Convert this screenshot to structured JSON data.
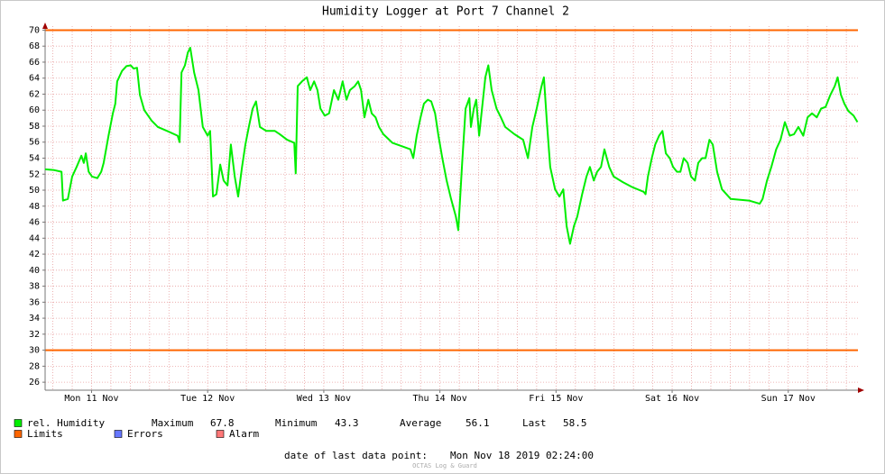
{
  "chart_data": {
    "type": "line",
    "title": "Humidity Logger at Port 7 Channel 2",
    "xlim": [
      2.4,
      170.4
    ],
    "xticks": [
      {
        "value": 12,
        "label": "Mon 11 Nov"
      },
      {
        "value": 36,
        "label": "Tue 12 Nov"
      },
      {
        "value": 60,
        "label": "Wed 13 Nov"
      },
      {
        "value": 84,
        "label": "Thu 14 Nov"
      },
      {
        "value": 108,
        "label": "Fri 15 Nov"
      },
      {
        "value": 132,
        "label": "Sat 16 Nov"
      },
      {
        "value": 156,
        "label": "Sun 17 Nov"
      }
    ],
    "xgrid": [
      4,
      8,
      12,
      16,
      20,
      24,
      28,
      32,
      36,
      40,
      44,
      48,
      52,
      56,
      60,
      64,
      68,
      72,
      76,
      80,
      84,
      88,
      92,
      96,
      100,
      104,
      108,
      112,
      116,
      120,
      124,
      128,
      132,
      136,
      140,
      144,
      148,
      152,
      156,
      160,
      164,
      168
    ],
    "ylim": [
      25,
      70.5
    ],
    "yticks": [
      26,
      28,
      30,
      32,
      34,
      36,
      38,
      40,
      42,
      44,
      46,
      48,
      50,
      52,
      54,
      56,
      58,
      60,
      62,
      64,
      66,
      68,
      70
    ],
    "grid": true,
    "series": [
      {
        "name": "rel. Humidity",
        "color": "#00ee00",
        "x": [
          2.4,
          4.3,
          5.8,
          6.1,
          7.1,
          8.0,
          8.9,
          9.9,
          10.4,
          10.8,
          11.4,
          12.1,
          13.2,
          14.0,
          14.5,
          15.5,
          16.4,
          16.9,
          17.3,
          18.3,
          19.2,
          20.1,
          20.7,
          21.4,
          22.0,
          22.9,
          24.4,
          25.7,
          27.6,
          29.8,
          30.2,
          30.6,
          31.3,
          31.9,
          32.4,
          33.2,
          34.1,
          35.0,
          36.0,
          36.5,
          37.1,
          37.8,
          38.6,
          39.3,
          40.1,
          40.8,
          41.6,
          42.3,
          43.1,
          43.8,
          44.5,
          45.3,
          46.0,
          46.8,
          48.1,
          49.9,
          50.9,
          52.4,
          53.9,
          54.2,
          54.6,
          55.5,
          56.5,
          57.2,
          58.0,
          58.7,
          59.3,
          60.2,
          61.1,
          62.1,
          63.0,
          63.9,
          64.7,
          65.4,
          66.4,
          67.1,
          67.7,
          68.4,
          69.2,
          69.9,
          70.7,
          71.4,
          72.3,
          74.2,
          76.1,
          77.9,
          78.5,
          79.2,
          80.0,
          80.7,
          81.5,
          82.2,
          83.0,
          83.7,
          84.5,
          85.4,
          86.3,
          87.3,
          87.8,
          88.6,
          89.3,
          90.1,
          90.4,
          91.0,
          91.5,
          92.1,
          92.7,
          93.4,
          94.0,
          94.7,
          95.7,
          96.6,
          97.5,
          99.4,
          101.2,
          102.2,
          103.1,
          104.0,
          105.0,
          105.5,
          106.1,
          106.8,
          107.8,
          108.7,
          109.5,
          110.2,
          110.9,
          111.7,
          112.4,
          113.4,
          114.3,
          115.0,
          115.8,
          116.5,
          117.3,
          118.0,
          119.0,
          119.9,
          121.8,
          123.7,
          126.1,
          126.5,
          127.0,
          127.8,
          128.5,
          129.3,
          130.0,
          130.7,
          131.5,
          132.2,
          133.0,
          133.7,
          134.4,
          135.2,
          135.9,
          136.7,
          137.4,
          138.2,
          138.9,
          139.7,
          140.4,
          141.3,
          142.3,
          144.1,
          147.9,
          150.1,
          150.7,
          151.6,
          152.5,
          153.5,
          154.4,
          155.3,
          156.3,
          157.2,
          158.1,
          159.1,
          160.0,
          160.9,
          161.9,
          162.8,
          163.7,
          164.7,
          165.6,
          166.2,
          166.9,
          167.6,
          168.4,
          169.5,
          170.3
        ],
        "values": [
          52.6,
          52.5,
          52.3,
          48.7,
          48.9,
          51.7,
          52.9,
          54.3,
          53.4,
          54.6,
          52.3,
          51.7,
          51.5,
          52.3,
          53.4,
          56.8,
          59.6,
          60.8,
          63.6,
          64.9,
          65.5,
          65.6,
          65.2,
          65.3,
          61.9,
          60.0,
          58.7,
          57.9,
          57.4,
          56.8,
          56.0,
          64.7,
          65.6,
          67.2,
          67.8,
          64.7,
          62.5,
          57.9,
          56.8,
          57.4,
          49.2,
          49.5,
          53.2,
          51.2,
          50.6,
          55.7,
          51.7,
          49.2,
          52.9,
          55.7,
          57.9,
          60.2,
          61.1,
          57.9,
          57.4,
          57.4,
          57.0,
          56.3,
          55.9,
          52.1,
          63.0,
          63.6,
          64.1,
          62.5,
          63.6,
          62.5,
          60.2,
          59.3,
          59.6,
          62.5,
          61.3,
          63.6,
          61.3,
          62.5,
          63.0,
          63.6,
          62.5,
          59.1,
          61.3,
          59.6,
          59.1,
          57.9,
          57.0,
          55.9,
          55.5,
          55.1,
          54.0,
          56.8,
          59.1,
          60.8,
          61.3,
          61.1,
          59.6,
          56.8,
          54.0,
          51.2,
          48.9,
          46.7,
          45.0,
          53.4,
          60.2,
          61.5,
          57.9,
          60.2,
          61.3,
          56.8,
          60.2,
          64.1,
          65.6,
          62.5,
          60.2,
          59.1,
          57.9,
          57.0,
          56.3,
          54.0,
          57.9,
          60.2,
          63.0,
          64.1,
          58.5,
          52.9,
          50.1,
          49.2,
          50.1,
          45.5,
          43.3,
          45.5,
          46.7,
          49.5,
          51.7,
          52.9,
          51.2,
          52.3,
          52.9,
          55.1,
          52.9,
          51.7,
          51.0,
          50.4,
          49.8,
          49.5,
          51.7,
          54.0,
          55.7,
          56.8,
          57.4,
          54.6,
          54.0,
          52.9,
          52.3,
          52.3,
          54.0,
          53.4,
          51.7,
          51.2,
          53.4,
          54.0,
          54.0,
          56.3,
          55.7,
          52.3,
          50.1,
          48.9,
          48.7,
          48.3,
          48.9,
          51.2,
          52.9,
          55.1,
          56.3,
          58.5,
          56.8,
          57.0,
          57.9,
          56.8,
          59.1,
          59.6,
          59.1,
          60.2,
          60.4,
          61.9,
          63.0,
          64.1,
          61.9,
          60.8,
          59.9,
          59.3,
          58.5
        ]
      }
    ],
    "limits": {
      "name": "Limits",
      "color": "#ff6600",
      "values": [
        70,
        30
      ]
    },
    "errors": {
      "name": "Errors",
      "color": "#6677ff"
    },
    "alarm": {
      "name": "Alarm",
      "color": "#ff7777"
    },
    "stats": [
      {
        "label": "Maximum",
        "value": 67.8
      },
      {
        "label": "Minimum",
        "value": 43.3
      },
      {
        "label": "Average",
        "value": 56.1
      },
      {
        "label": "Last",
        "value": 58.5
      }
    ],
    "footer": {
      "label": "date of last data point:",
      "value": "Mon Nov 18 2019 02:24:00"
    },
    "credit": "OCTAS Log & Guard"
  }
}
